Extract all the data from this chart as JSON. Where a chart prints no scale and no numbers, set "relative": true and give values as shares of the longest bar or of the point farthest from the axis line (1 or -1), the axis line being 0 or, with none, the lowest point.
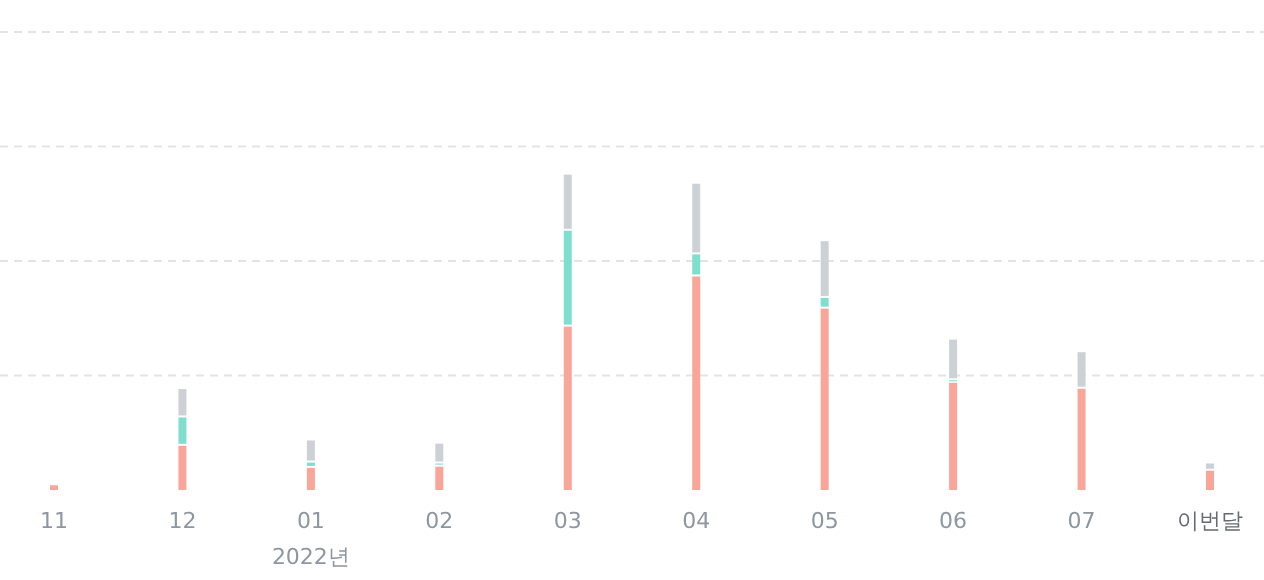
{
  "chart_data": {
    "type": "bar",
    "stacked": true,
    "relative": true,
    "ref_lines": [
      {
        "axis": "y",
        "value": 0.363,
        "color": "#e3e3e3",
        "line_style": "dashed"
      },
      {
        "axis": "y",
        "value": 0.726,
        "color": "#e3e3e3",
        "line_style": "dashed"
      },
      {
        "axis": "y",
        "value": 1.089,
        "color": "#e3e3e3",
        "line_style": "dashed"
      },
      {
        "axis": "y",
        "value": 1.452,
        "color": "#e3e3e3",
        "line_style": "dashed"
      }
    ],
    "categories": [
      "11",
      "12",
      "01",
      "02",
      "03",
      "04",
      "05",
      "06",
      "07",
      "이번달"
    ],
    "series": [
      {
        "color": "#f9a59a",
        "values": [
          0.015,
          0.14,
          0.07,
          0.074,
          0.518,
          0.677,
          0.575,
          0.34,
          0.321,
          0.061
        ]
      },
      {
        "color": "#7fdfcf",
        "values": [
          0,
          0.09,
          0.017,
          0.01,
          0.304,
          0.07,
          0.034,
          0.008,
          0,
          0
        ]
      },
      {
        "color": "#cdd1d6",
        "values": [
          0,
          0.09,
          0.07,
          0.063,
          0.178,
          0.224,
          0.18,
          0.129,
          0.116,
          0.023
        ]
      }
    ],
    "annotations": [
      "2022년"
    ]
  }
}
